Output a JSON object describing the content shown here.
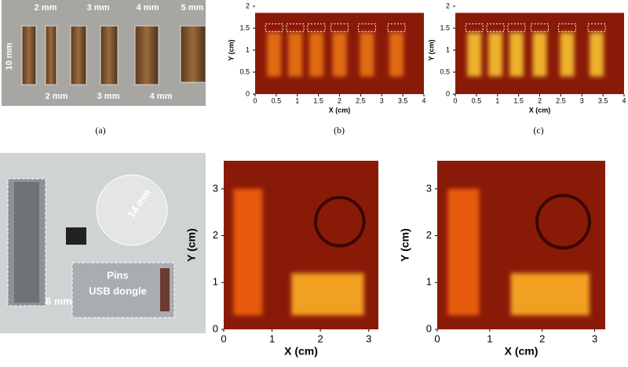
{
  "figure": {
    "panels": [
      {
        "caption": "(a)",
        "labels": [
          "2 mm",
          "3 mm",
          "4 mm",
          "5 mm",
          "10 mm",
          "2 mm",
          "3 mm",
          "4 mm"
        ]
      },
      {
        "caption": "(b)",
        "xlabel": "X (cm)",
        "ylabel": "Y (cm)",
        "xlim": [
          0,
          4
        ],
        "ylim": [
          0,
          2
        ],
        "xticks": [
          0,
          0.5,
          1,
          1.5,
          2,
          2.5,
          3,
          3.5,
          4
        ],
        "yticks": [
          0,
          0.5,
          1,
          1.5,
          2
        ]
      },
      {
        "caption": "(c)",
        "xlabel": "X (cm)",
        "ylabel": "Y (cm)",
        "xlim": [
          0,
          4
        ],
        "ylim": [
          0,
          2
        ],
        "xticks": [
          0,
          0.5,
          1,
          1.5,
          2,
          2.5,
          3,
          3.5,
          4
        ],
        "yticks": [
          0,
          0.5,
          1,
          1.5,
          2
        ]
      },
      {
        "labels": [
          "14 mm",
          "6 mm",
          "Pins",
          "USB dongle"
        ]
      },
      {
        "xlabel": "X (cm)",
        "ylabel": "Y (cm)",
        "xlim": [
          0,
          3.2
        ],
        "ylim": [
          0,
          3.6
        ],
        "xticks": [
          0,
          1,
          2,
          3
        ],
        "yticks": [
          0,
          1,
          2,
          3
        ]
      },
      {
        "xlabel": "X (cm)",
        "ylabel": "Y (cm)",
        "xlim": [
          0,
          3.2
        ],
        "ylim": [
          0,
          3.6
        ],
        "xticks": [
          0,
          1,
          2,
          3
        ],
        "yticks": [
          0,
          1,
          2,
          3
        ]
      }
    ]
  }
}
